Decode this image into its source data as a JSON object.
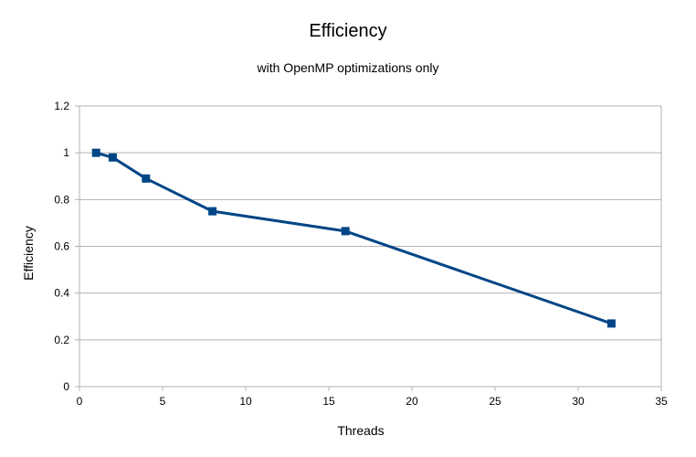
{
  "chart_data": {
    "type": "line",
    "title": "Efficiency",
    "subtitle": "with OpenMP optimizations only",
    "xlabel": "Threads",
    "ylabel": "Efficiency",
    "xlim": [
      0,
      35
    ],
    "ylim": [
      0,
      1.2
    ],
    "x_ticks": [
      "0",
      "5",
      "10",
      "15",
      "20",
      "25",
      "30",
      "35"
    ],
    "y_ticks": [
      "0",
      "0.2",
      "0.4",
      "0.6",
      "0.8",
      "1",
      "1.2"
    ],
    "grid": true,
    "legend": "none",
    "series": [
      {
        "color": "#004586",
        "marker": "square",
        "x": [
          1,
          2,
          4,
          8,
          16,
          32
        ],
        "y": [
          1.0,
          0.98,
          0.89,
          0.75,
          0.665,
          0.27
        ]
      }
    ]
  }
}
